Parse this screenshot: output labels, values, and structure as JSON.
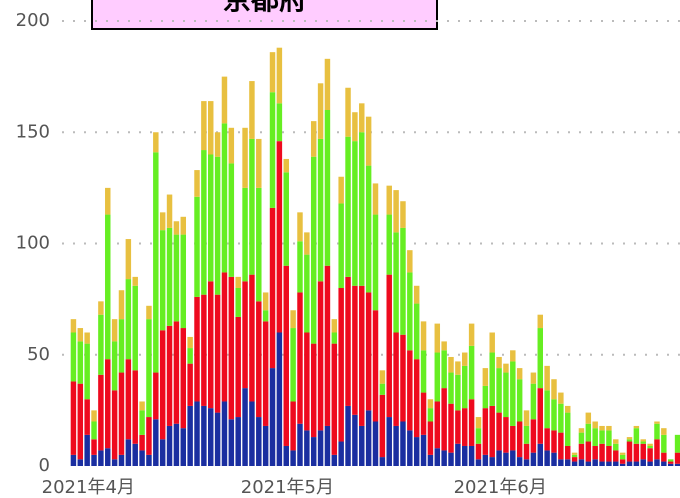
{
  "chart_data": {
    "type": "stacked_bar",
    "title": "京都府",
    "categories": [
      null,
      "2021年4月",
      null,
      null,
      null,
      null,
      null,
      null,
      null,
      null,
      null,
      null,
      null,
      null,
      null,
      null,
      null,
      null,
      null,
      null,
      null,
      null,
      null,
      null,
      null,
      null,
      null,
      null,
      null,
      null,
      "2021年5月",
      null,
      null,
      null,
      null,
      null,
      null,
      null,
      null,
      null,
      null,
      null,
      null,
      null,
      null,
      null,
      null,
      null,
      null,
      null,
      null,
      null,
      null,
      null,
      null,
      null,
      null,
      null,
      null,
      null,
      null,
      "2021年6月",
      null,
      null,
      null,
      null,
      null,
      null,
      null,
      null,
      null,
      null,
      null,
      null,
      null,
      null,
      null,
      null,
      null,
      null,
      null,
      null,
      null,
      null,
      null,
      null,
      null,
      null,
      null
    ],
    "series": [
      {
        "color": "#1a2ea0",
        "values": [
          5,
          3,
          14,
          5,
          7,
          8,
          3,
          5,
          12,
          10,
          7,
          5,
          21,
          12,
          18,
          19,
          17,
          27,
          29,
          27,
          26,
          24,
          29,
          21,
          22,
          35,
          29,
          22,
          18,
          44,
          60,
          9,
          7,
          19,
          16,
          13,
          16,
          18,
          5,
          11,
          27,
          23,
          18,
          25,
          20,
          4,
          22,
          18,
          20,
          16,
          13,
          14,
          5,
          8,
          7,
          6,
          10,
          9,
          9,
          3,
          5,
          4,
          7,
          6,
          7,
          4,
          3,
          6,
          10,
          7,
          6,
          3,
          3,
          2,
          3,
          2,
          3,
          2,
          2,
          2,
          1,
          2,
          2,
          3,
          2,
          3,
          2,
          1,
          1
        ]
      },
      {
        "color": "#ee0a1e",
        "values": [
          33,
          34,
          16,
          7,
          34,
          40,
          31,
          37,
          36,
          33,
          7,
          17,
          21,
          49,
          45,
          46,
          45,
          19,
          47,
          50,
          57,
          53,
          58,
          64,
          45,
          48,
          57,
          52,
          47,
          72,
          86,
          81,
          22,
          59,
          44,
          42,
          67,
          72,
          50,
          69,
          58,
          58,
          63,
          53,
          50,
          28,
          64,
          42,
          39,
          36,
          35,
          19,
          15,
          21,
          28,
          22,
          15,
          17,
          21,
          7,
          21,
          23,
          17,
          16,
          11,
          16,
          7,
          15,
          25,
          10,
          10,
          12,
          6,
          2,
          7,
          9,
          6,
          8,
          7,
          5,
          2,
          9,
          8,
          7,
          6,
          9,
          4,
          1,
          5
        ]
      },
      {
        "color": "#66ee22",
        "values": [
          22,
          19,
          25,
          8,
          27,
          65,
          22,
          24,
          36,
          38,
          11,
          44,
          99,
          45,
          44,
          39,
          42,
          7,
          45,
          65,
          57,
          62,
          67,
          51,
          13,
          42,
          61,
          51,
          5,
          52,
          17,
          42,
          33,
          23,
          35,
          84,
          64,
          70,
          5,
          38,
          63,
          65,
          69,
          57,
          43,
          5,
          27,
          45,
          48,
          35,
          25,
          19,
          6,
          22,
          17,
          14,
          16,
          19,
          24,
          7,
          10,
          24,
          20,
          20,
          29,
          19,
          8,
          16,
          27,
          17,
          14,
          13,
          15,
          1,
          5,
          8,
          8,
          6,
          7,
          3,
          2,
          1,
          7,
          1,
          1,
          7,
          8,
          1,
          8
        ]
      },
      {
        "color": "#e8c040",
        "values": [
          6,
          6,
          5,
          5,
          6,
          12,
          10,
          13,
          18,
          4,
          4,
          6,
          9,
          8,
          15,
          6,
          8,
          5,
          12,
          22,
          24,
          11,
          21,
          16,
          5,
          27,
          26,
          22,
          8,
          18,
          25,
          6,
          8,
          13,
          10,
          16,
          25,
          23,
          6,
          12,
          22,
          13,
          13,
          22,
          14,
          6,
          13,
          19,
          12,
          10,
          8,
          13,
          4,
          13,
          4,
          7,
          6,
          6,
          10,
          5,
          8,
          9,
          5,
          4,
          5,
          5,
          7,
          5,
          6,
          11,
          9,
          5,
          3,
          1,
          2,
          5,
          3,
          2,
          2,
          2,
          1,
          1,
          1,
          1,
          1,
          1,
          3,
          0,
          0
        ]
      }
    ],
    "ylim": [
      0,
      200
    ],
    "yticks": [
      0,
      50,
      100,
      150,
      200
    ],
    "grid": true
  }
}
